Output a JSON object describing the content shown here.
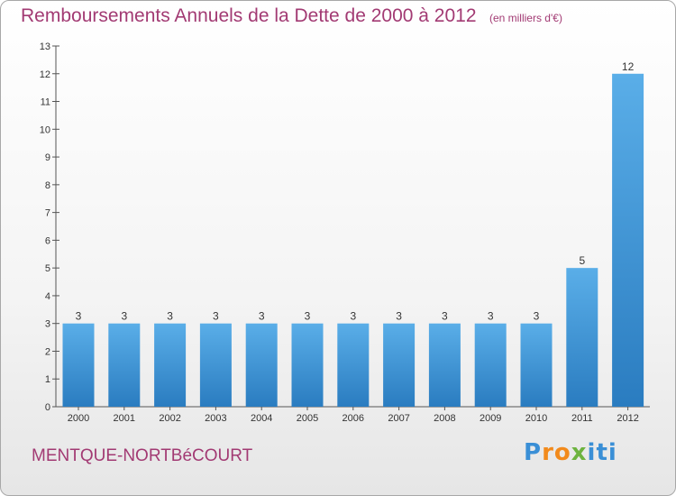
{
  "header": {
    "title": "Remboursements Annuels de la Dette de 2000 à 2012",
    "unit": "(en milliers d'€)"
  },
  "footer": {
    "commune": "MENTQUE-NORTBéCOURT",
    "logo": {
      "p": "P",
      "ro": "ro",
      "x": "x",
      "iti": "iti"
    }
  },
  "colors": {
    "accent": "#a23a73",
    "bar_top": "#5aaee8",
    "bar_bottom": "#2a7cc0"
  },
  "chart_data": {
    "type": "bar",
    "categories": [
      "2000",
      "2001",
      "2002",
      "2003",
      "2004",
      "2005",
      "2006",
      "2007",
      "2008",
      "2009",
      "2010",
      "2011",
      "2012"
    ],
    "values": [
      3,
      3,
      3,
      3,
      3,
      3,
      3,
      3,
      3,
      3,
      3,
      5,
      12
    ],
    "title": "Remboursements Annuels de la Dette de 2000 à 2012",
    "subtitle": "(en milliers d'€)",
    "ylim": [
      0,
      13
    ],
    "yticks": [
      0,
      1,
      2,
      3,
      4,
      5,
      6,
      7,
      8,
      9,
      10,
      11,
      12,
      13
    ],
    "grid": false
  }
}
